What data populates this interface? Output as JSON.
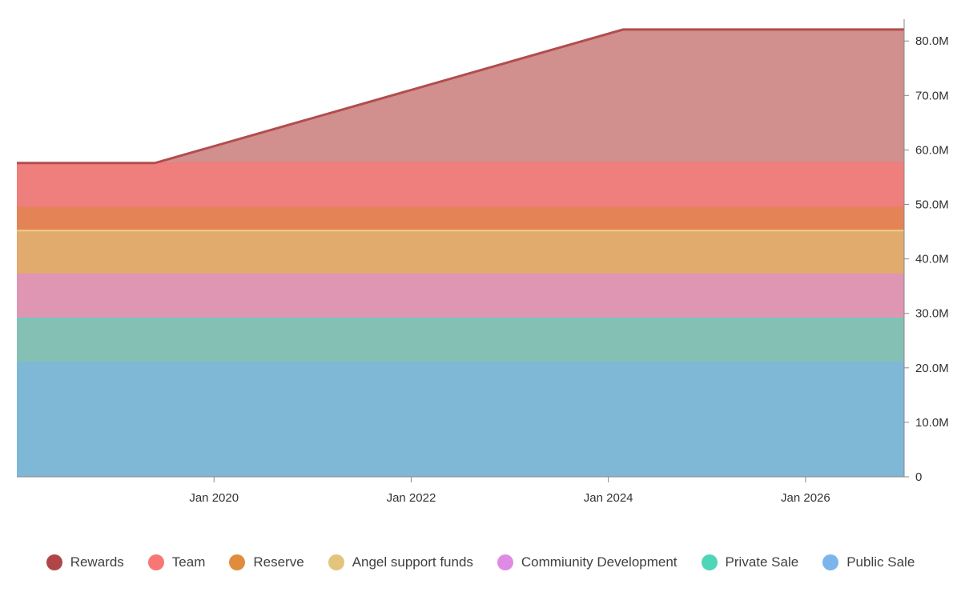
{
  "chart_data": {
    "type": "area",
    "stacked": true,
    "x_start": 2018.0,
    "x_end": 2027.0,
    "xticks": [
      {
        "x": 2020,
        "label": "Jan 2020"
      },
      {
        "x": 2022,
        "label": "Jan 2022"
      },
      {
        "x": 2024,
        "label": "Jan 2024"
      },
      {
        "x": 2026,
        "label": "Jan 2026"
      }
    ],
    "ylim": [
      0,
      84000000
    ],
    "yticks": [
      {
        "value": 0,
        "label": "0"
      },
      {
        "value": 10000000,
        "label": "10.0M"
      },
      {
        "value": 20000000,
        "label": "20.0M"
      },
      {
        "value": 30000000,
        "label": "30.0M"
      },
      {
        "value": 40000000,
        "label": "40.0M"
      },
      {
        "value": 50000000,
        "label": "50.0M"
      },
      {
        "value": 60000000,
        "label": "60.0M"
      },
      {
        "value": 70000000,
        "label": "70.0M"
      },
      {
        "value": 80000000,
        "label": "80.0M"
      }
    ],
    "series": [
      {
        "name": "Public Sale",
        "color": "#7fb7d6",
        "line_color": "#7fb7d6",
        "legend_color": "#7cb5ec",
        "points": [
          [
            2018.0,
            21000000
          ],
          [
            2027.0,
            21000000
          ]
        ]
      },
      {
        "name": "Private Sale",
        "color": "#84c0b4",
        "line_color": "#5fd1b9",
        "legend_color": "#4fd5b7",
        "points": [
          [
            2018.0,
            8000000
          ],
          [
            2027.0,
            8000000
          ]
        ]
      },
      {
        "name": "Commiunity Development",
        "color": "#de96b2",
        "line_color": "#de96b2",
        "legend_color": "#df8be4",
        "points": [
          [
            2018.0,
            8200000
          ],
          [
            2027.0,
            8200000
          ]
        ]
      },
      {
        "name": "Angel support funds",
        "color": "#e1ab6e",
        "line_color": "#efcf86",
        "legend_color": "#e2c47d",
        "points": [
          [
            2018.0,
            8000000
          ],
          [
            2027.0,
            8000000
          ]
        ]
      },
      {
        "name": "Reserve",
        "color": "#e48356",
        "line_color": "#e48356",
        "legend_color": "#e08c3e",
        "points": [
          [
            2018.0,
            4200000
          ],
          [
            2027.0,
            4200000
          ]
        ]
      },
      {
        "name": "Team",
        "color": "#ee7f7c",
        "line_color": "#f37c79",
        "legend_color": "#f77775",
        "points": [
          [
            2018.0,
            8200000
          ],
          [
            2027.0,
            8200000
          ]
        ]
      },
      {
        "name": "Rewards",
        "color": "#d18f8e",
        "line_color": "#b24d4d",
        "legend_color": "#b04548",
        "points": [
          [
            2018.0,
            0
          ],
          [
            2019.4,
            0
          ],
          [
            2024.15,
            24500000
          ],
          [
            2027.0,
            24500000
          ]
        ]
      }
    ]
  },
  "legend": {
    "items": [
      {
        "label": "Rewards",
        "color": "#b04548"
      },
      {
        "label": "Team",
        "color": "#f77775"
      },
      {
        "label": "Reserve",
        "color": "#e08c3e"
      },
      {
        "label": "Angel support funds",
        "color": "#e2c47d"
      },
      {
        "label": "Commiunity Development",
        "color": "#df8be4"
      },
      {
        "label": "Private Sale",
        "color": "#4fd5b7"
      },
      {
        "label": "Public Sale",
        "color": "#7cb5ec"
      }
    ]
  }
}
